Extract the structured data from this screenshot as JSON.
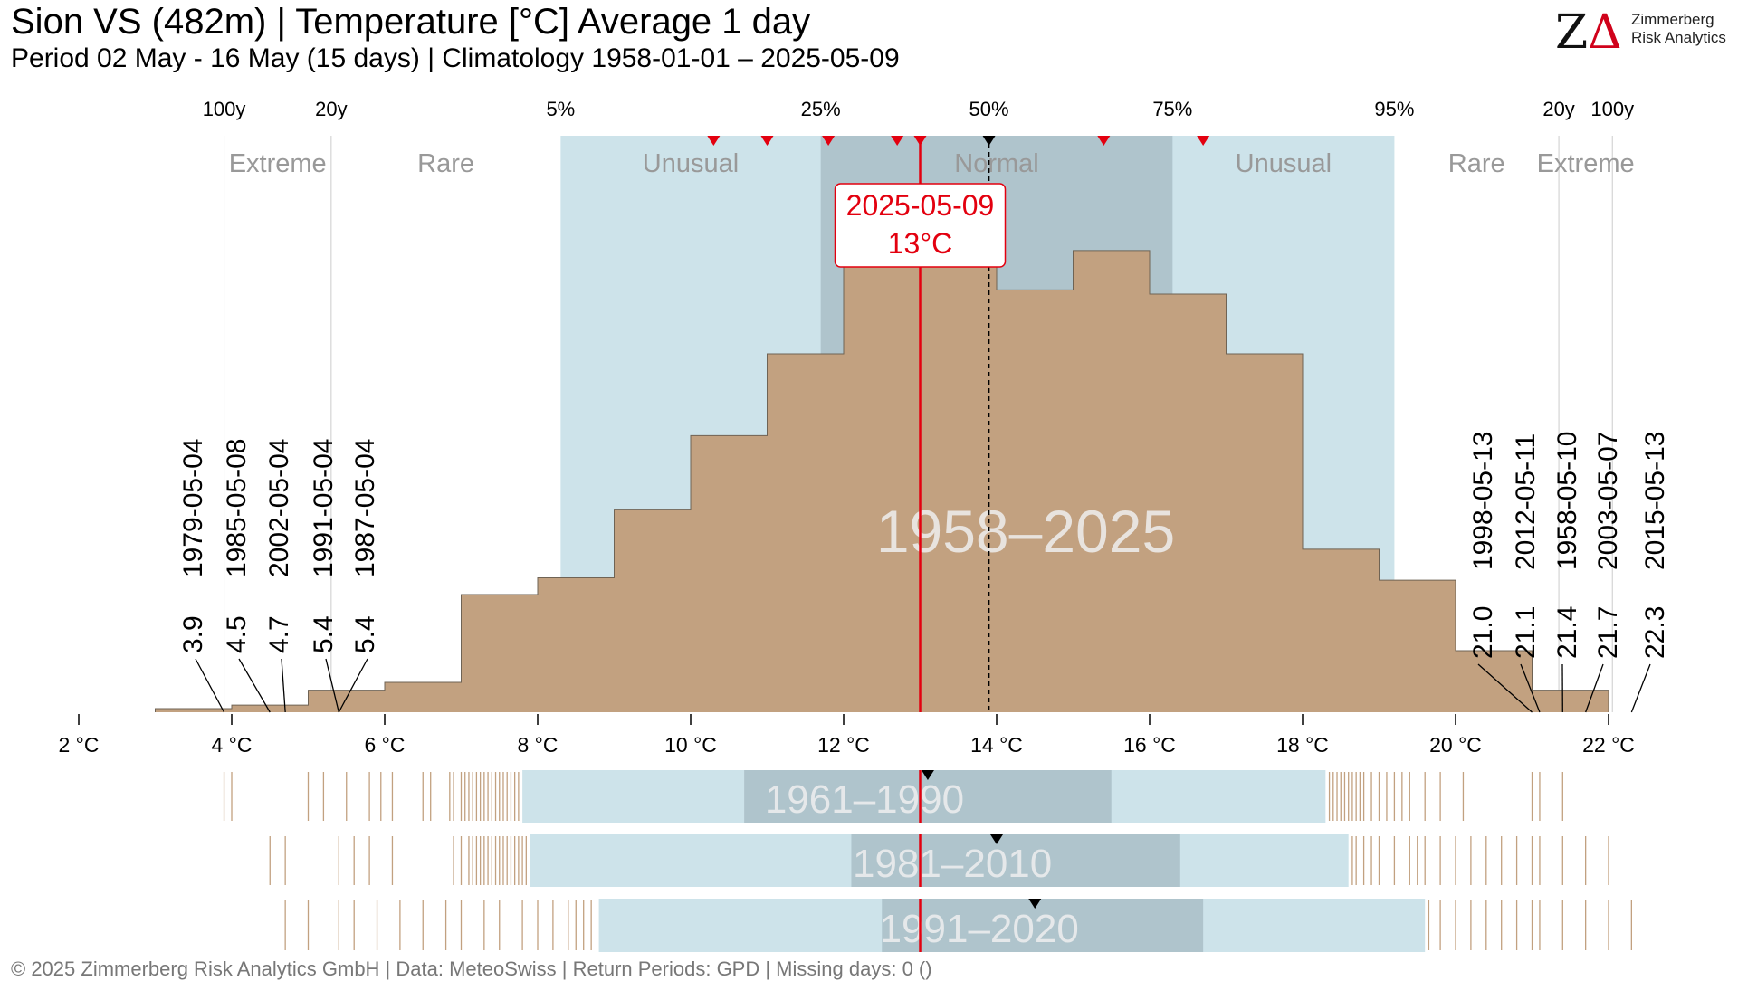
{
  "header": {
    "title": "Sion  VS (482m) | Temperature [°C] Average 1 day",
    "subtitle": "Period 02 May - 16 May (15 days) | Climatology 1958-01-01 – 2025-05-09"
  },
  "logo": {
    "mark_z": "Z",
    "mark_delta": "Δ",
    "line1": "Zimmerberg",
    "line2": "Risk Analytics"
  },
  "footer": "©  2025 Zimmerberg Risk Analytics GmbH | Data: MeteoSwiss | Return Periods: GPD | Missing days: 0 ()",
  "colors": {
    "histogram": "#c2a180",
    "histogram_edge": "#6f6354",
    "unusual_band": "#cde3ea",
    "normal_band": "#afc4cc",
    "current": "#e3000f",
    "median_marker": "#000000",
    "guide_line": "#cccccc",
    "band_label": "#999999",
    "period_watermark": "#eeeeee"
  },
  "chart_data": {
    "type": "histogram",
    "xlabel": "",
    "ylabel": "",
    "unit": "°C",
    "xlim": [
      2,
      22.3
    ],
    "x_ticks": [
      {
        "value": 2,
        "label": "2 °C"
      },
      {
        "value": 4,
        "label": "4 °C"
      },
      {
        "value": 6,
        "label": "6 °C"
      },
      {
        "value": 8,
        "label": "8 °C"
      },
      {
        "value": 10,
        "label": "10 °C"
      },
      {
        "value": 12,
        "label": "12 °C"
      },
      {
        "value": 14,
        "label": "14 °C"
      },
      {
        "value": 16,
        "label": "16 °C"
      },
      {
        "value": 18,
        "label": "18 °C"
      },
      {
        "value": 20,
        "label": "20 °C"
      },
      {
        "value": 22,
        "label": "22 °C"
      }
    ],
    "top_axis": [
      {
        "label": "100y",
        "value": 3.9
      },
      {
        "label": "20y",
        "value": 5.3
      },
      {
        "label": "5%",
        "value": 8.3
      },
      {
        "label": "25%",
        "value": 11.7
      },
      {
        "label": "50%",
        "value": 13.9
      },
      {
        "label": "75%",
        "value": 16.3
      },
      {
        "label": "95%",
        "value": 19.2
      },
      {
        "label": "20y",
        "value": 21.35
      },
      {
        "label": "100y",
        "value": 22.05
      }
    ],
    "bands": [
      {
        "label": "Extreme",
        "from": 3.9,
        "to": 5.3
      },
      {
        "label": "Rare",
        "from": 5.3,
        "to": 8.3
      },
      {
        "label": "Unusual",
        "from": 8.3,
        "to": 11.7
      },
      {
        "label": "Normal",
        "from": 11.7,
        "to": 16.3
      },
      {
        "label": "Unusual",
        "from": 16.3,
        "to": 19.2
      },
      {
        "label": "Rare",
        "from": 19.2,
        "to": 21.35
      },
      {
        "label": "Extreme",
        "from": 21.35,
        "to": 22.05
      }
    ],
    "histogram_period": "1958–2025",
    "histogram_bins": [
      {
        "from": 3,
        "to": 4,
        "height": 0.006
      },
      {
        "from": 4,
        "to": 5,
        "height": 0.012
      },
      {
        "from": 5,
        "to": 6,
        "height": 0.037
      },
      {
        "from": 6,
        "to": 7,
        "height": 0.05
      },
      {
        "from": 7,
        "to": 8,
        "height": 0.197
      },
      {
        "from": 8,
        "to": 9,
        "height": 0.225
      },
      {
        "from": 9,
        "to": 10,
        "height": 0.34
      },
      {
        "from": 10,
        "to": 11,
        "height": 0.463
      },
      {
        "from": 11,
        "to": 12,
        "height": 0.6
      },
      {
        "from": 12,
        "to": 13,
        "height": 0.8
      },
      {
        "from": 13,
        "to": 14,
        "height": 0.855
      },
      {
        "from": 14,
        "to": 15,
        "height": 0.707
      },
      {
        "from": 15,
        "to": 16,
        "height": 0.773
      },
      {
        "from": 16,
        "to": 17,
        "height": 0.7
      },
      {
        "from": 17,
        "to": 18,
        "height": 0.6
      },
      {
        "from": 18,
        "to": 19,
        "height": 0.273
      },
      {
        "from": 19,
        "to": 20,
        "height": 0.221
      },
      {
        "from": 20,
        "to": 21,
        "height": 0.103
      },
      {
        "from": 21,
        "to": 22,
        "height": 0.037
      }
    ],
    "current": {
      "date": "2025-05-09",
      "value": 13,
      "label": "13°C"
    },
    "median": 13.9,
    "recent_markers": [
      10.3,
      11.0,
      11.8,
      12.7,
      13.0,
      15.4,
      16.7
    ],
    "extremes_low": [
      {
        "date": "1979-05-04",
        "value": 3.9,
        "label": "3.9"
      },
      {
        "date": "1985-05-08",
        "value": 4.5,
        "label": "4.5"
      },
      {
        "date": "2002-05-04",
        "value": 4.7,
        "label": "4.7"
      },
      {
        "date": "1991-05-04",
        "value": 5.4,
        "label": "5.4"
      },
      {
        "date": "1987-05-04",
        "value": 5.4,
        "label": "5.4"
      }
    ],
    "extremes_high": [
      {
        "date": "1998-05-13",
        "value": 21.0,
        "label": "21.0"
      },
      {
        "date": "2012-05-11",
        "value": 21.1,
        "label": "21.1"
      },
      {
        "date": "1958-05-10",
        "value": 21.4,
        "label": "21.4"
      },
      {
        "date": "2003-05-07",
        "value": 21.7,
        "label": "21.7"
      },
      {
        "date": "2015-05-13",
        "value": 22.3,
        "label": "22.3"
      }
    ],
    "climate_periods": [
      {
        "label": "1961–1990",
        "p5": 7.8,
        "p25": 10.7,
        "p75": 15.5,
        "p95": 18.3,
        "median": 13.1,
        "low_days": [
          3.9,
          4.0,
          5.0,
          5.2,
          5.5,
          5.8,
          5.95,
          6.1,
          6.5,
          6.6,
          6.85,
          6.9,
          7.0,
          7.05,
          7.1,
          7.15,
          7.2,
          7.25,
          7.3,
          7.35,
          7.4,
          7.45,
          7.5,
          7.55,
          7.6,
          7.65,
          7.7,
          7.75
        ],
        "high_days": [
          18.35,
          18.4,
          18.45,
          18.5,
          18.55,
          18.6,
          18.65,
          18.7,
          18.75,
          18.8,
          18.9,
          19.0,
          19.1,
          19.2,
          19.3,
          19.4,
          19.6,
          19.8,
          20.1,
          21.0,
          21.1,
          21.4
        ]
      },
      {
        "label": "1981–2010",
        "p5": 7.9,
        "p25": 12.1,
        "p75": 16.4,
        "p95": 18.6,
        "median": 14.0,
        "low_days": [
          4.5,
          4.7,
          5.4,
          5.6,
          5.8,
          6.1,
          6.9,
          7.0,
          7.1,
          7.15,
          7.2,
          7.25,
          7.3,
          7.35,
          7.4,
          7.45,
          7.5,
          7.55,
          7.6,
          7.65,
          7.7,
          7.75,
          7.8,
          7.85
        ],
        "high_days": [
          18.65,
          18.7,
          18.8,
          18.9,
          19.0,
          19.2,
          19.4,
          19.5,
          19.6,
          19.8,
          20.0,
          20.2,
          20.4,
          20.6,
          20.8,
          21.0,
          21.1,
          21.4,
          21.7,
          22.0
        ]
      },
      {
        "label": "1991–2020",
        "p5": 8.8,
        "p25": 12.5,
        "p75": 16.7,
        "p95": 19.6,
        "median": 14.5,
        "low_days": [
          4.7,
          5.0,
          5.4,
          5.6,
          5.9,
          6.2,
          6.5,
          6.8,
          7.0,
          7.3,
          7.5,
          7.8,
          8.0,
          8.2,
          8.4,
          8.5,
          8.6,
          8.7
        ],
        "high_days": [
          19.65,
          19.8,
          20.0,
          20.2,
          20.4,
          20.6,
          20.8,
          21.0,
          21.1,
          21.4,
          21.7,
          22.0,
          22.3
        ]
      }
    ]
  }
}
